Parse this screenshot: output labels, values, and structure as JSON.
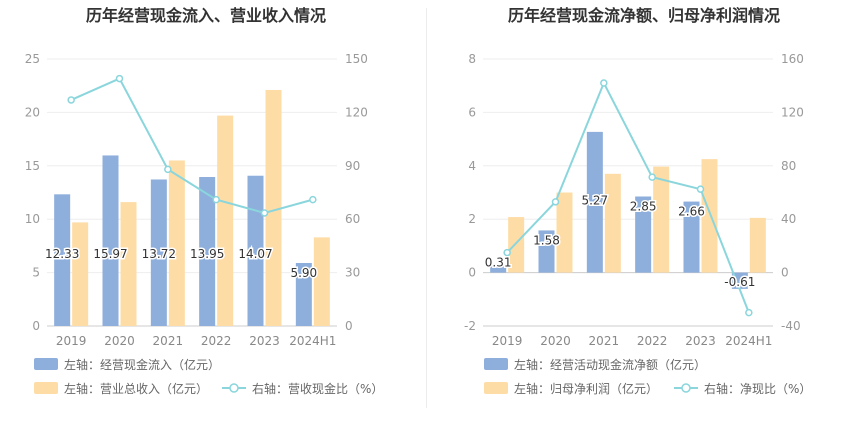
{
  "chart_data": [
    {
      "type": "bar",
      "title": "历年经营现金流入、营业收入情况",
      "categories": [
        "2019",
        "2020",
        "2021",
        "2022",
        "2023",
        "2024H1"
      ],
      "left_axis": {
        "min": 0,
        "max": 25,
        "ticks": [
          "0",
          "5",
          "10",
          "15",
          "20",
          "25"
        ]
      },
      "right_axis": {
        "min": 0,
        "max": 150,
        "ticks": [
          "0",
          "30",
          "60",
          "90",
          "120",
          "150"
        ]
      },
      "series": [
        {
          "name": "左轴：经营现金流入（亿元）",
          "kind": "bar",
          "axis": "left",
          "color": "#8eaedc",
          "values": [
            12.33,
            15.97,
            13.72,
            13.95,
            14.07,
            5.9
          ],
          "labels": [
            "12.33",
            "15.97",
            "13.72",
            "13.95",
            "14.07",
            "5.90"
          ]
        },
        {
          "name": "左轴：营业总收入（亿元）",
          "kind": "bar",
          "axis": "left",
          "color": "#fedca6",
          "values": [
            9.7,
            11.6,
            15.5,
            19.7,
            22.1,
            8.3
          ]
        },
        {
          "name": "右轴：营收现金比（%）",
          "kind": "line",
          "axis": "right",
          "color": "#8ad6dc",
          "values": [
            127,
            139,
            88,
            71,
            63.5,
            71
          ]
        }
      ]
    },
    {
      "type": "bar",
      "title": "历年经营现金流净额、归母净利润情况",
      "categories": [
        "2019",
        "2020",
        "2021",
        "2022",
        "2023",
        "2024H1"
      ],
      "left_axis": {
        "min": -2,
        "max": 8,
        "ticks": [
          "-2",
          "0",
          "2",
          "4",
          "6",
          "8"
        ]
      },
      "right_axis": {
        "min": -40,
        "max": 160,
        "ticks": [
          "-40",
          "0",
          "40",
          "80",
          "120",
          "160"
        ]
      },
      "series": [
        {
          "name": "左轴：经营活动现金流净额（亿元）",
          "kind": "bar",
          "axis": "left",
          "color": "#8eaedc",
          "values": [
            0.31,
            1.58,
            5.27,
            2.85,
            2.66,
            -0.61
          ],
          "labels": [
            "0.31",
            "1.58",
            "5.27",
            "2.85",
            "2.66",
            "-0.61"
          ]
        },
        {
          "name": "左轴：归母净利润（亿元）",
          "kind": "bar",
          "axis": "left",
          "color": "#fedca6",
          "values": [
            2.08,
            3.0,
            3.7,
            3.97,
            4.25,
            2.05
          ]
        },
        {
          "name": "右轴：净现比（%）",
          "kind": "line",
          "axis": "right",
          "color": "#8ad6dc",
          "values": [
            15,
            53,
            142,
            71.5,
            62.5,
            -30
          ]
        }
      ]
    }
  ]
}
